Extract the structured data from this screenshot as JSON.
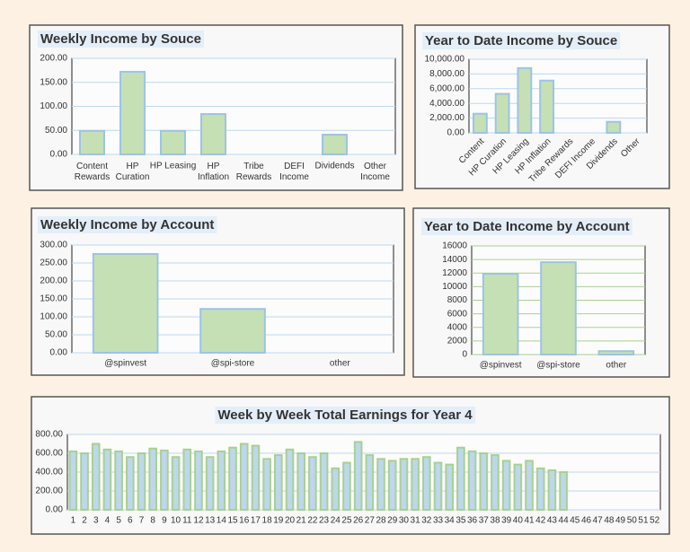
{
  "chart_data": [
    {
      "type": "bar",
      "title": "Weekly Income by Souce",
      "title_color": "#2e75b6",
      "categories": [
        "Content Rewards",
        "HP Curation",
        "HP Leasing",
        "HP Inflation",
        "Tribe Rewards",
        "DEFI Income",
        "Dividends",
        "Other Income"
      ],
      "values": [
        49,
        172,
        49,
        84,
        0,
        0,
        41,
        0
      ],
      "color": "#c5e0b4",
      "edge_color": "#9dc3e6",
      "ylim": [
        0,
        200
      ],
      "yticks": [
        {
          "value": 0,
          "label": "0.00"
        },
        {
          "value": 50,
          "label": "50.00"
        },
        {
          "value": 100,
          "label": "100.00"
        },
        {
          "value": 150,
          "label": "150.00"
        },
        {
          "value": 200,
          "label": "200.00"
        }
      ],
      "grid": true
    },
    {
      "type": "bar",
      "title": "Year to Date Income by Souce",
      "title_color": "#548235",
      "categories": [
        "Content",
        "HP Curation",
        "HP Leasing",
        "HP Inflation",
        "Tribe Rewards",
        "DEFI Income",
        "Dividends",
        "Other"
      ],
      "values": [
        2600,
        5300,
        8800,
        7100,
        0,
        0,
        1500,
        0
      ],
      "color": "#c5e0b4",
      "edge_color": "#9dc3e6",
      "ylim": [
        0,
        10000
      ],
      "yticks": [
        {
          "value": 0,
          "label": "0.00"
        },
        {
          "value": 2000,
          "label": "2,000.00"
        },
        {
          "value": 4000,
          "label": "4,000.00"
        },
        {
          "value": 6000,
          "label": "6,000.00"
        },
        {
          "value": 8000,
          "label": "8,000.00"
        },
        {
          "value": 10000,
          "label": "10,000.00"
        }
      ],
      "grid": true
    },
    {
      "type": "bar",
      "title": "Weekly Income by Account",
      "title_color": "#2e75b6",
      "categories": [
        "@spinvest",
        "@spi-store",
        "other"
      ],
      "values": [
        275,
        122,
        0
      ],
      "color": "#c5e0b4",
      "edge_color": "#9dc3e6",
      "ylim": [
        0,
        300
      ],
      "yticks": [
        {
          "value": 0,
          "label": "0.00"
        },
        {
          "value": 50,
          "label": "50.00"
        },
        {
          "value": 100,
          "label": "100.00"
        },
        {
          "value": 150,
          "label": "150.00"
        },
        {
          "value": 200,
          "label": "200.00"
        },
        {
          "value": 250,
          "label": "250.00"
        },
        {
          "value": 300,
          "label": "300.00"
        }
      ],
      "grid": true
    },
    {
      "type": "bar",
      "title": "Year to Date Income by Account",
      "title_color": "#548235",
      "categories": [
        "@spinvest",
        "@spi-store",
        "other"
      ],
      "values": [
        11900,
        13600,
        500
      ],
      "color": "#c5e0b4",
      "edge_color": "#9dc3e6",
      "ylim": [
        0,
        16000
      ],
      "yticks": [
        0,
        2000,
        4000,
        6000,
        8000,
        10000,
        12000,
        14000,
        16000
      ],
      "grid": true
    },
    {
      "type": "bar",
      "title": "Week by Week Total Earnings for Year 4",
      "title_color": "#2e75b6",
      "categories": [
        "1",
        "2",
        "3",
        "4",
        "5",
        "6",
        "7",
        "8",
        "9",
        "10",
        "11",
        "12",
        "13",
        "14",
        "15",
        "16",
        "17",
        "18",
        "19",
        "20",
        "21",
        "22",
        "23",
        "24",
        "25",
        "26",
        "27",
        "28",
        "29",
        "30",
        "31",
        "32",
        "33",
        "34",
        "35",
        "36",
        "37",
        "38",
        "39",
        "40",
        "41",
        "42",
        "43",
        "44",
        "45",
        "46",
        "47",
        "48",
        "49",
        "50",
        "51",
        "52"
      ],
      "values": [
        620,
        600,
        700,
        640,
        620,
        560,
        600,
        650,
        630,
        560,
        640,
        620,
        560,
        620,
        660,
        700,
        680,
        540,
        580,
        640,
        600,
        560,
        600,
        440,
        500,
        720,
        580,
        540,
        520,
        540,
        540,
        560,
        500,
        480,
        660,
        620,
        600,
        580,
        520,
        480,
        520,
        440,
        420,
        400,
        null,
        null,
        null,
        null,
        null,
        null,
        null,
        null
      ],
      "color": "#bdd7ee",
      "edge_color": "#a9d18e",
      "ylim": [
        0,
        800
      ],
      "yticks": [
        {
          "value": 0,
          "label": "0.00"
        },
        {
          "value": 200,
          "label": "200.00"
        },
        {
          "value": 400,
          "label": "400.00"
        },
        {
          "value": 600,
          "label": "600.00"
        },
        {
          "value": 800,
          "label": "800.00"
        }
      ],
      "grid": true
    }
  ]
}
